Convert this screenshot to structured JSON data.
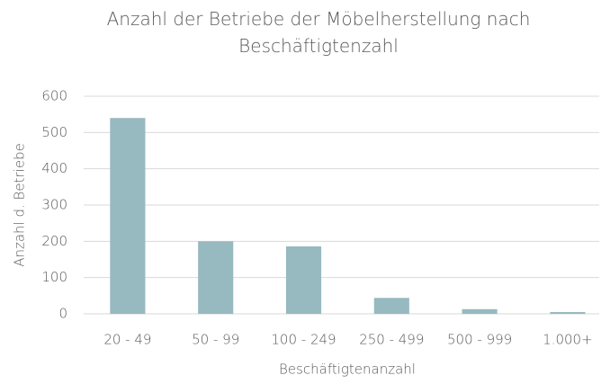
{
  "chart_data": {
    "type": "bar",
    "title": "Anzahl der Betriebe der Möbelherstellung nach Beschäftigtenzahl",
    "x_label": "Beschäftigtenanzahl",
    "y_label": "Anzahl d. Betriebe",
    "categories": [
      "20 - 49",
      "50 - 99",
      "100 - 249",
      "250 - 499",
      "500 - 999",
      "1.000+"
    ],
    "values": [
      540,
      200,
      186,
      44,
      13,
      5
    ],
    "color": "#97b9c0",
    "ylim": [
      0,
      600
    ],
    "yticks": [
      0,
      100,
      200,
      300,
      400,
      500,
      600
    ],
    "grid": true
  }
}
